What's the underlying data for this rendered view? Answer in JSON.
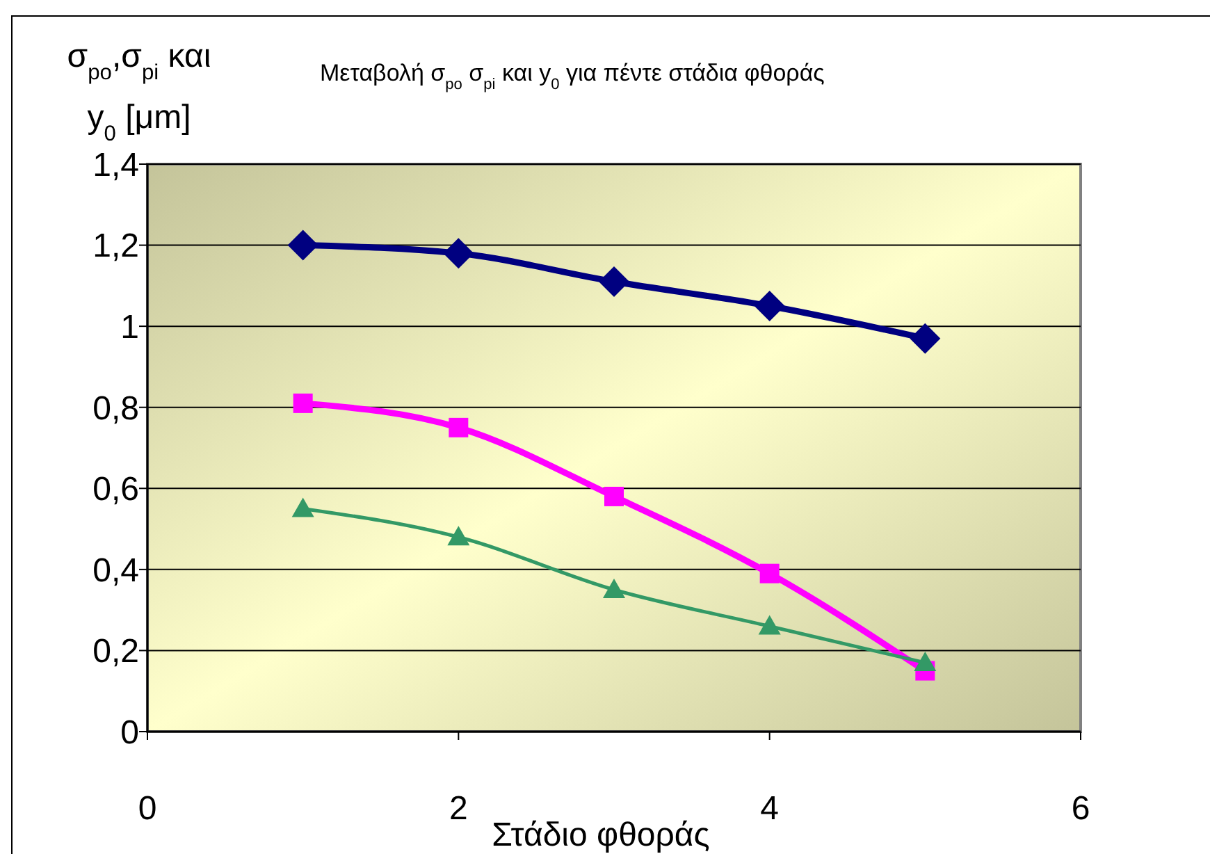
{
  "chart_data": {
    "type": "line",
    "title": "Μεταβολή σ$_{po}$ σ$_{pi}$ και y$_{0}$ για πέντε στάδια φθοράς",
    "xlabel": "Στάδιο φθοράς",
    "ylabel": "σ$_{po}$,σ$_{pi}$ και y$_{0}$ [μm]",
    "x": [
      1,
      2,
      3,
      4,
      5
    ],
    "series": [
      {
        "color": "#000080",
        "marker": "diamond",
        "values": [
          1.2,
          1.18,
          1.11,
          1.05,
          0.97
        ]
      },
      {
        "color": "#ff00ff",
        "marker": "square",
        "values": [
          0.81,
          0.75,
          0.58,
          0.39,
          0.15
        ]
      },
      {
        "color": "#339966",
        "marker": "triangle",
        "values": [
          0.55,
          0.48,
          0.35,
          0.26,
          0.17
        ]
      }
    ],
    "xlim": [
      0,
      6
    ],
    "xticks": [
      0,
      2,
      4,
      6
    ],
    "ylim": [
      0,
      1.4
    ],
    "yticks": [
      0,
      {
        "value": 0.2,
        "label": "0,2"
      },
      {
        "value": 0.4,
        "label": "0,4"
      },
      {
        "value": 0.6,
        "label": "0,6"
      },
      {
        "value": 0.8,
        "label": "0,8"
      },
      1,
      {
        "value": 1.2,
        "label": "1,2"
      },
      {
        "value": 1.4,
        "label": "1,4"
      }
    ],
    "grid": "y"
  }
}
